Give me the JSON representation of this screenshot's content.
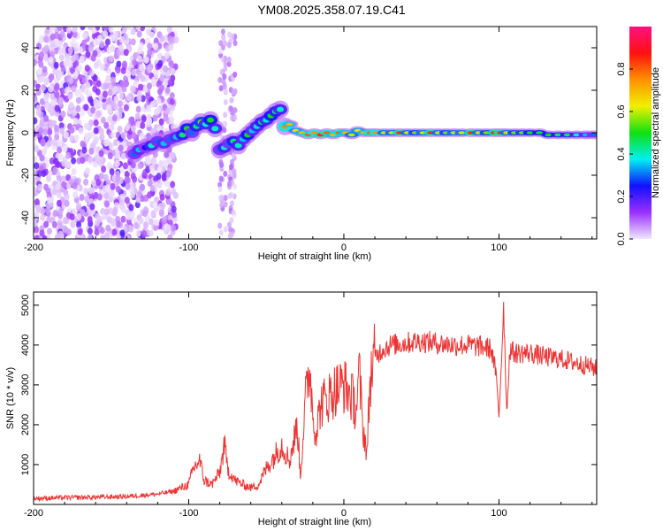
{
  "chart_data": [
    {
      "type": "heatmap",
      "title": "YM08.2025.358.07.19.C41",
      "xlabel": "Height of straight line (km)",
      "ylabel": "Frequency (Hz)",
      "xlim": [
        -200,
        163
      ],
      "ylim": [
        -50,
        50
      ],
      "xticks": [
        -200,
        -100,
        0,
        100
      ],
      "xtick_labels": [
        "-200",
        "-100",
        "0",
        "100"
      ],
      "yticks": [
        -40,
        -20,
        0,
        20,
        40
      ],
      "ytick_labels": [
        "-40",
        "-20",
        "0",
        "20",
        "40"
      ],
      "colorbar": {
        "label": "Normalized spectral amplitude",
        "range": [
          0,
          1
        ],
        "ticks": [
          0.0,
          0.2,
          0.4,
          0.6,
          0.8
        ],
        "tick_labels": [
          "0.0",
          "0.2",
          "0.4",
          "0.6",
          "0.8"
        ],
        "colors": [
          "#f0e6ff",
          "#9a30ff",
          "#1010ff",
          "#00f0f0",
          "#10e010",
          "#f0f000",
          "#ff9000",
          "#ff1010",
          "#ff1080"
        ]
      },
      "noise_region_km": [
        -200,
        -110
      ],
      "ridge": [
        [
          -135,
          -10,
          0.3
        ],
        [
          -132,
          -8,
          0.35
        ],
        [
          -128,
          -7,
          0.25
        ],
        [
          -124,
          -6,
          0.4
        ],
        [
          -120,
          -4,
          0.3
        ],
        [
          -116,
          -5,
          0.35
        ],
        [
          -112,
          -3,
          0.3
        ],
        [
          -108,
          -2,
          0.35
        ],
        [
          -104,
          -1,
          0.45
        ],
        [
          -101,
          2,
          0.5
        ],
        [
          -98,
          0,
          0.3
        ],
        [
          -95,
          3,
          0.45
        ],
        [
          -92,
          5,
          0.55
        ],
        [
          -89,
          4,
          0.4
        ],
        [
          -86,
          6,
          0.5
        ],
        [
          -83,
          2,
          0.4
        ],
        [
          -80,
          -8,
          0.3
        ],
        [
          -77,
          -7,
          0.4
        ],
        [
          -74,
          -5,
          0.3
        ],
        [
          -71,
          -4,
          0.45
        ],
        [
          -68,
          -6,
          0.4
        ],
        [
          -65,
          -3,
          0.35
        ],
        [
          -62,
          -1,
          0.5
        ],
        [
          -59,
          1,
          0.35
        ],
        [
          -56,
          3,
          0.4
        ],
        [
          -53,
          5,
          0.45
        ],
        [
          -50,
          6,
          0.4
        ],
        [
          -47,
          8,
          0.5
        ],
        [
          -44,
          10,
          0.45
        ],
        [
          -41,
          11,
          0.4
        ],
        [
          -38,
          3,
          0.75
        ],
        [
          -35,
          4,
          0.7
        ],
        [
          -31,
          1,
          0.65
        ],
        [
          -27,
          0,
          0.7
        ],
        [
          -23,
          -1,
          0.8
        ],
        [
          -19,
          0,
          0.75
        ],
        [
          -15,
          -1,
          0.85
        ],
        [
          -11,
          0,
          0.8
        ],
        [
          -7,
          -1,
          0.7
        ],
        [
          -3,
          0,
          0.8
        ],
        [
          1,
          0,
          0.7
        ],
        [
          5,
          -1,
          0.6
        ],
        [
          9,
          1,
          0.65
        ],
        [
          13,
          0,
          0.7
        ],
        [
          17,
          0,
          0.8
        ],
        [
          21,
          0,
          0.75
        ],
        [
          26,
          0,
          0.6
        ],
        [
          31,
          0,
          0.6
        ],
        [
          36,
          0,
          0.85
        ],
        [
          41,
          0,
          0.6
        ],
        [
          46,
          0,
          0.55
        ],
        [
          51,
          0,
          0.6
        ],
        [
          56,
          0,
          0.85
        ],
        [
          61,
          0,
          0.6
        ],
        [
          66,
          0,
          0.55
        ],
        [
          71,
          0,
          0.6
        ],
        [
          76,
          0,
          0.6
        ],
        [
          82,
          0,
          0.85
        ],
        [
          87,
          0,
          0.6
        ],
        [
          92,
          0,
          0.55
        ],
        [
          97,
          0,
          0.85
        ],
        [
          101,
          0,
          0.85
        ],
        [
          105,
          0,
          0.6
        ],
        [
          110,
          0,
          0.55
        ],
        [
          115,
          0,
          0.55
        ],
        [
          120,
          0,
          0.5
        ],
        [
          126,
          0,
          0.5
        ],
        [
          132,
          -1,
          0.5
        ],
        [
          138,
          -1,
          0.45
        ],
        [
          144,
          -1,
          0.45
        ],
        [
          150,
          -1,
          0.4
        ],
        [
          156,
          -1,
          0.35
        ],
        [
          161,
          -1,
          0.3
        ]
      ]
    },
    {
      "type": "line",
      "xlabel": "Height of straight line (km)",
      "ylabel": "SNR (10 * v/v)",
      "xlim": [
        -200,
        163
      ],
      "ylim": [
        0,
        5330
      ],
      "xticks": [
        -200,
        -100,
        0,
        100
      ],
      "xtick_labels": [
        "-200",
        "-100",
        "0",
        "100"
      ],
      "yticks": [
        1000,
        2000,
        3000,
        4000,
        5000
      ],
      "ytick_labels": [
        "1000",
        "2000",
        "3000",
        "4000",
        "5000"
      ],
      "series": [
        {
          "name": "SNR",
          "color": "#ee3333",
          "points": [
            [
              -200,
              150
            ],
            [
              -180,
              170
            ],
            [
              -160,
              180
            ],
            [
              -140,
              200
            ],
            [
              -120,
              260
            ],
            [
              -110,
              330
            ],
            [
              -100,
              500
            ],
            [
              -97,
              900
            ],
            [
              -93,
              1100
            ],
            [
              -90,
              600
            ],
            [
              -85,
              500
            ],
            [
              -80,
              800
            ],
            [
              -77,
              1500
            ],
            [
              -75,
              900
            ],
            [
              -70,
              600
            ],
            [
              -65,
              500
            ],
            [
              -60,
              420
            ],
            [
              -55,
              500
            ],
            [
              -50,
              900
            ],
            [
              -45,
              1200
            ],
            [
              -40,
              1500
            ],
            [
              -35,
              1100
            ],
            [
              -30,
              2000
            ],
            [
              -28,
              700
            ],
            [
              -25,
              2500
            ],
            [
              -22,
              3500
            ],
            [
              -20,
              2300
            ],
            [
              -18,
              1800
            ],
            [
              -15,
              2500
            ],
            [
              -10,
              2700
            ],
            [
              -5,
              2900
            ],
            [
              0,
              3000
            ],
            [
              5,
              2700
            ],
            [
              8,
              2400
            ],
            [
              10,
              3300
            ],
            [
              12,
              2000
            ],
            [
              15,
              1300
            ],
            [
              17,
              3200
            ],
            [
              20,
              3700
            ],
            [
              25,
              3900
            ],
            [
              30,
              4000
            ],
            [
              40,
              4050
            ],
            [
              50,
              4100
            ],
            [
              60,
              4050
            ],
            [
              70,
              4000
            ],
            [
              80,
              4000
            ],
            [
              90,
              3950
            ],
            [
              95,
              3900
            ],
            [
              98,
              3300
            ],
            [
              100,
              2200
            ],
            [
              102,
              4000
            ],
            [
              103,
              5000
            ],
            [
              105,
              2300
            ],
            [
              107,
              3900
            ],
            [
              110,
              3800
            ],
            [
              120,
              3800
            ],
            [
              130,
              3700
            ],
            [
              140,
              3650
            ],
            [
              150,
              3550
            ],
            [
              160,
              3450
            ],
            [
              163,
              3400
            ]
          ]
        }
      ]
    }
  ]
}
